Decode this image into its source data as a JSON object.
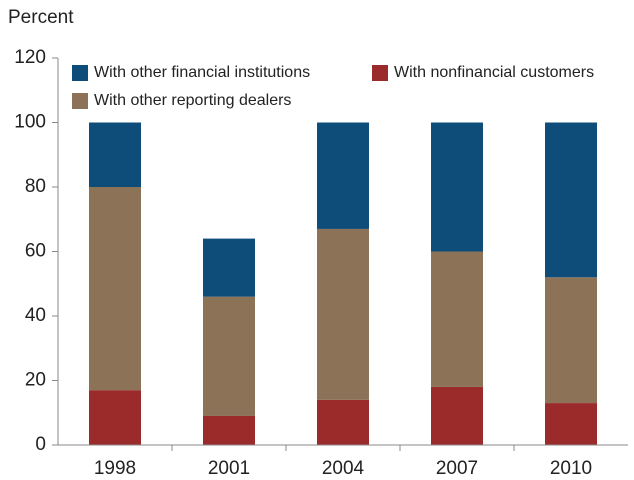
{
  "chart_data": {
    "type": "stacked-bar",
    "y_label": "Percent",
    "categories": [
      "1998",
      "2001",
      "2004",
      "2007",
      "2010"
    ],
    "series": [
      {
        "name": "With nonfinancial customers",
        "color": "#9b2a2a",
        "values": [
          17,
          9,
          14,
          18,
          13
        ]
      },
      {
        "name": "With other reporting dealers",
        "color": "#8c7358",
        "values": [
          63,
          37,
          53,
          42,
          39
        ]
      },
      {
        "name": "With other financial institutions",
        "color": "#0e4d7a",
        "values": [
          20,
          18,
          33,
          40,
          48
        ]
      }
    ],
    "ylim": [
      0,
      120
    ],
    "yticks": [
      0,
      20,
      40,
      60,
      80,
      100,
      120
    ]
  }
}
